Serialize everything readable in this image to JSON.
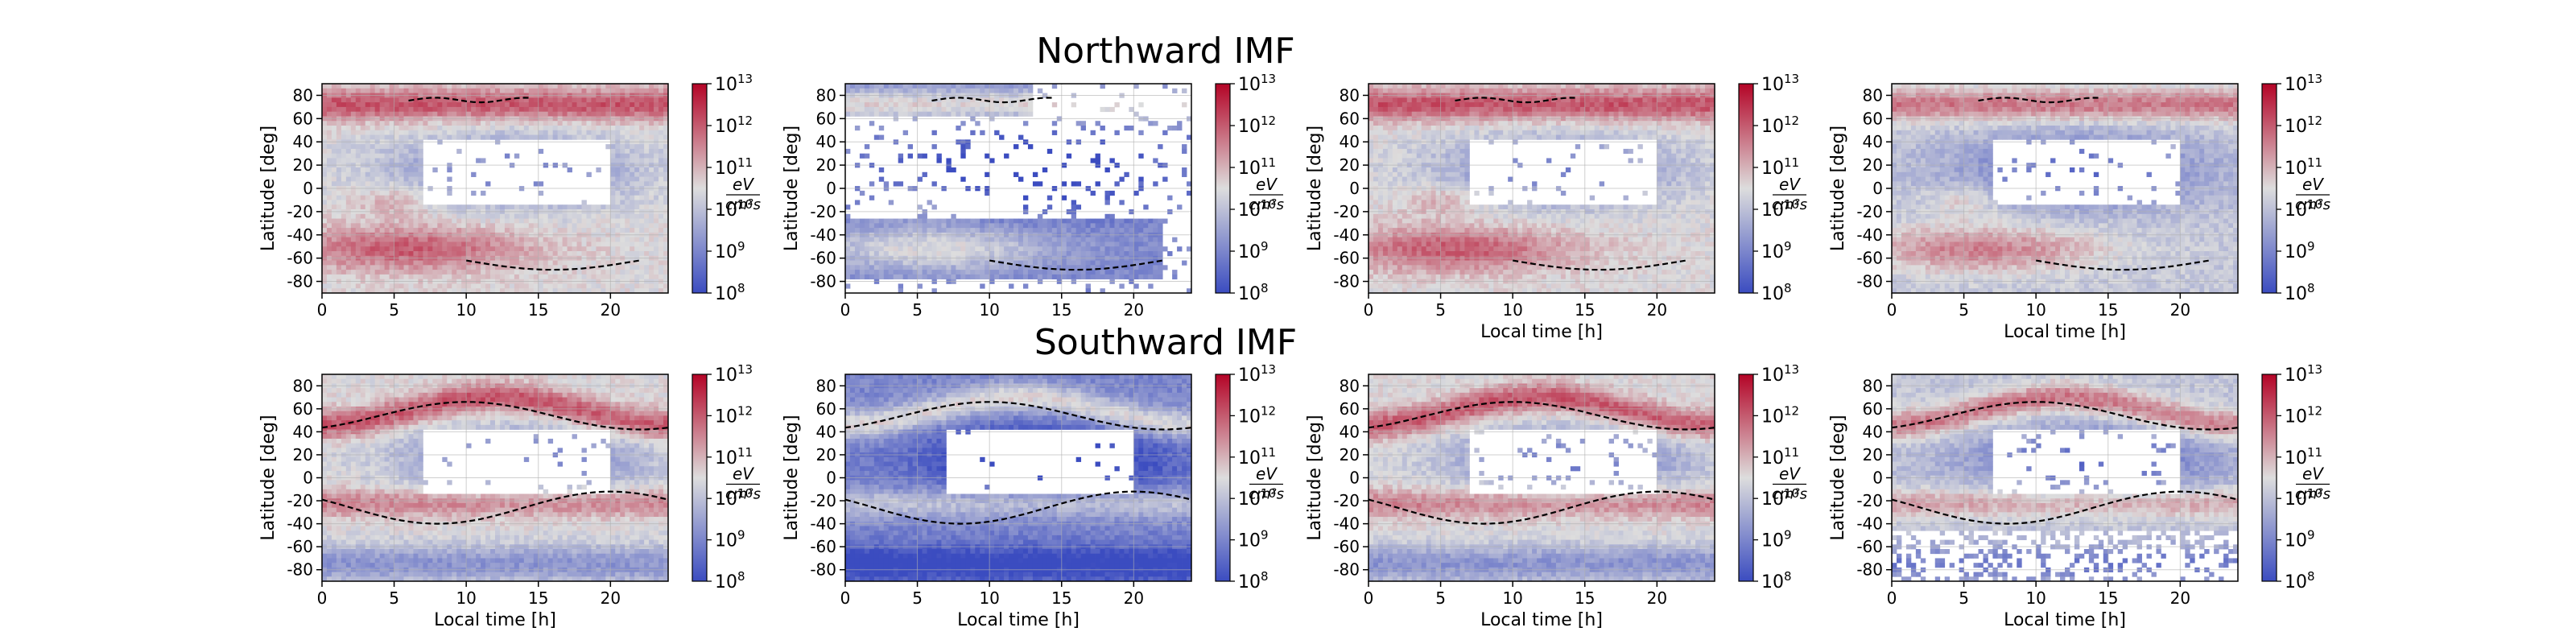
{
  "figure": {
    "row_titles": [
      "Northward IMF",
      "Southward IMF"
    ]
  },
  "chart_data": [
    {
      "type": "heatmap",
      "row": 0,
      "col": 0,
      "xlabel": "",
      "ylabel": "Latitude [deg]",
      "xlim": [
        0,
        24
      ],
      "ylim": [
        -90,
        90
      ],
      "xticks": [
        0,
        5,
        10,
        15,
        20
      ],
      "yticks": [
        80,
        60,
        40,
        20,
        0,
        -20,
        -40,
        -60,
        -80
      ],
      "colorbar": {
        "scale": "log",
        "range": [
          100000000.0,
          10000000000000.0
        ],
        "tick_exponents": [
          8,
          9,
          10,
          11,
          12,
          13
        ],
        "label": "eV/cm²s"
      },
      "boundary_curves": 2
    },
    {
      "type": "heatmap",
      "row": 0,
      "col": 1,
      "xlabel": "",
      "ylabel": "Latitude [deg]",
      "xlim": [
        0,
        24
      ],
      "ylim": [
        -90,
        90
      ],
      "xticks": [
        0,
        5,
        10,
        15,
        20
      ],
      "yticks": [
        80,
        60,
        40,
        20,
        0,
        -20,
        -40,
        -60,
        -80
      ],
      "colorbar": {
        "scale": "log",
        "range": [
          100000000.0,
          10000000000000.0
        ],
        "tick_exponents": [
          8,
          9,
          10,
          11,
          12,
          13
        ],
        "label": "eV/cm²s"
      },
      "boundary_curves": 2
    },
    {
      "type": "heatmap",
      "row": 0,
      "col": 2,
      "xlabel": "Local time [h]",
      "ylabel": "Latitude [deg]",
      "xlim": [
        0,
        24
      ],
      "ylim": [
        -90,
        90
      ],
      "xticks": [
        0,
        5,
        10,
        15,
        20
      ],
      "yticks": [
        80,
        60,
        40,
        20,
        0,
        -20,
        -40,
        -60,
        -80
      ],
      "colorbar": {
        "scale": "log",
        "range": [
          100000000.0,
          10000000000000.0
        ],
        "tick_exponents": [
          8,
          9,
          10,
          11,
          12,
          13
        ],
        "label": "eV/cm²s"
      },
      "boundary_curves": 2
    },
    {
      "type": "heatmap",
      "row": 0,
      "col": 3,
      "xlabel": "Local time [h]",
      "ylabel": "Latitude [deg]",
      "xlim": [
        0,
        24
      ],
      "ylim": [
        -90,
        90
      ],
      "xticks": [
        0,
        5,
        10,
        15,
        20
      ],
      "yticks": [
        80,
        60,
        40,
        20,
        0,
        -20,
        -40,
        -60,
        -80
      ],
      "colorbar": {
        "scale": "log",
        "range": [
          100000000.0,
          10000000000000.0
        ],
        "tick_exponents": [
          8,
          9,
          10,
          11,
          12,
          13
        ],
        "label": "eV/cm²s"
      },
      "boundary_curves": 2
    },
    {
      "type": "heatmap",
      "row": 1,
      "col": 0,
      "xlabel": "Local time [h]",
      "ylabel": "Latitude [deg]",
      "xlim": [
        0,
        24
      ],
      "ylim": [
        -90,
        90
      ],
      "xticks": [
        0,
        5,
        10,
        15,
        20
      ],
      "yticks": [
        80,
        60,
        40,
        20,
        0,
        -20,
        -40,
        -60,
        -80
      ],
      "colorbar": {
        "scale": "log",
        "range": [
          100000000.0,
          10000000000000.0
        ],
        "tick_exponents": [
          8,
          9,
          10,
          11,
          12,
          13
        ],
        "label": "eV/cm²s"
      },
      "boundary_curves": 2
    },
    {
      "type": "heatmap",
      "row": 1,
      "col": 1,
      "xlabel": "Local time [h]",
      "ylabel": "Latitude [deg]",
      "xlim": [
        0,
        24
      ],
      "ylim": [
        -90,
        90
      ],
      "xticks": [
        0,
        5,
        10,
        15,
        20
      ],
      "yticks": [
        80,
        60,
        40,
        20,
        0,
        -20,
        -40,
        -60,
        -80
      ],
      "colorbar": {
        "scale": "log",
        "range": [
          100000000.0,
          10000000000000.0
        ],
        "tick_exponents": [
          8,
          9,
          10,
          11,
          12,
          13
        ],
        "label": "eV/cm²s"
      },
      "boundary_curves": 2
    },
    {
      "type": "heatmap",
      "row": 1,
      "col": 2,
      "xlabel": "Local time [h]",
      "ylabel": "Latitude [deg]",
      "xlim": [
        0,
        24
      ],
      "ylim": [
        -90,
        90
      ],
      "xticks": [
        0,
        5,
        10,
        15,
        20
      ],
      "yticks": [
        80,
        60,
        40,
        20,
        0,
        -20,
        -40,
        -60,
        -80
      ],
      "colorbar": {
        "scale": "log",
        "range": [
          100000000.0,
          10000000000000.0
        ],
        "tick_exponents": [
          8,
          9,
          10,
          11,
          12,
          13
        ],
        "label": "eV/cm²s"
      },
      "boundary_curves": 2
    },
    {
      "type": "heatmap",
      "row": 1,
      "col": 3,
      "xlabel": "Local time [h]",
      "ylabel": "Latitude [deg]",
      "xlim": [
        0,
        24
      ],
      "ylim": [
        -90,
        90
      ],
      "xticks": [
        0,
        5,
        10,
        15,
        20
      ],
      "yticks": [
        80,
        60,
        40,
        20,
        0,
        -20,
        -40,
        -60,
        -80
      ],
      "colorbar": {
        "scale": "log",
        "range": [
          100000000.0,
          10000000000000.0
        ],
        "tick_exponents": [
          8,
          9,
          10,
          11,
          12,
          13
        ],
        "label": "eV/cm²s"
      },
      "boundary_curves": 2
    }
  ]
}
